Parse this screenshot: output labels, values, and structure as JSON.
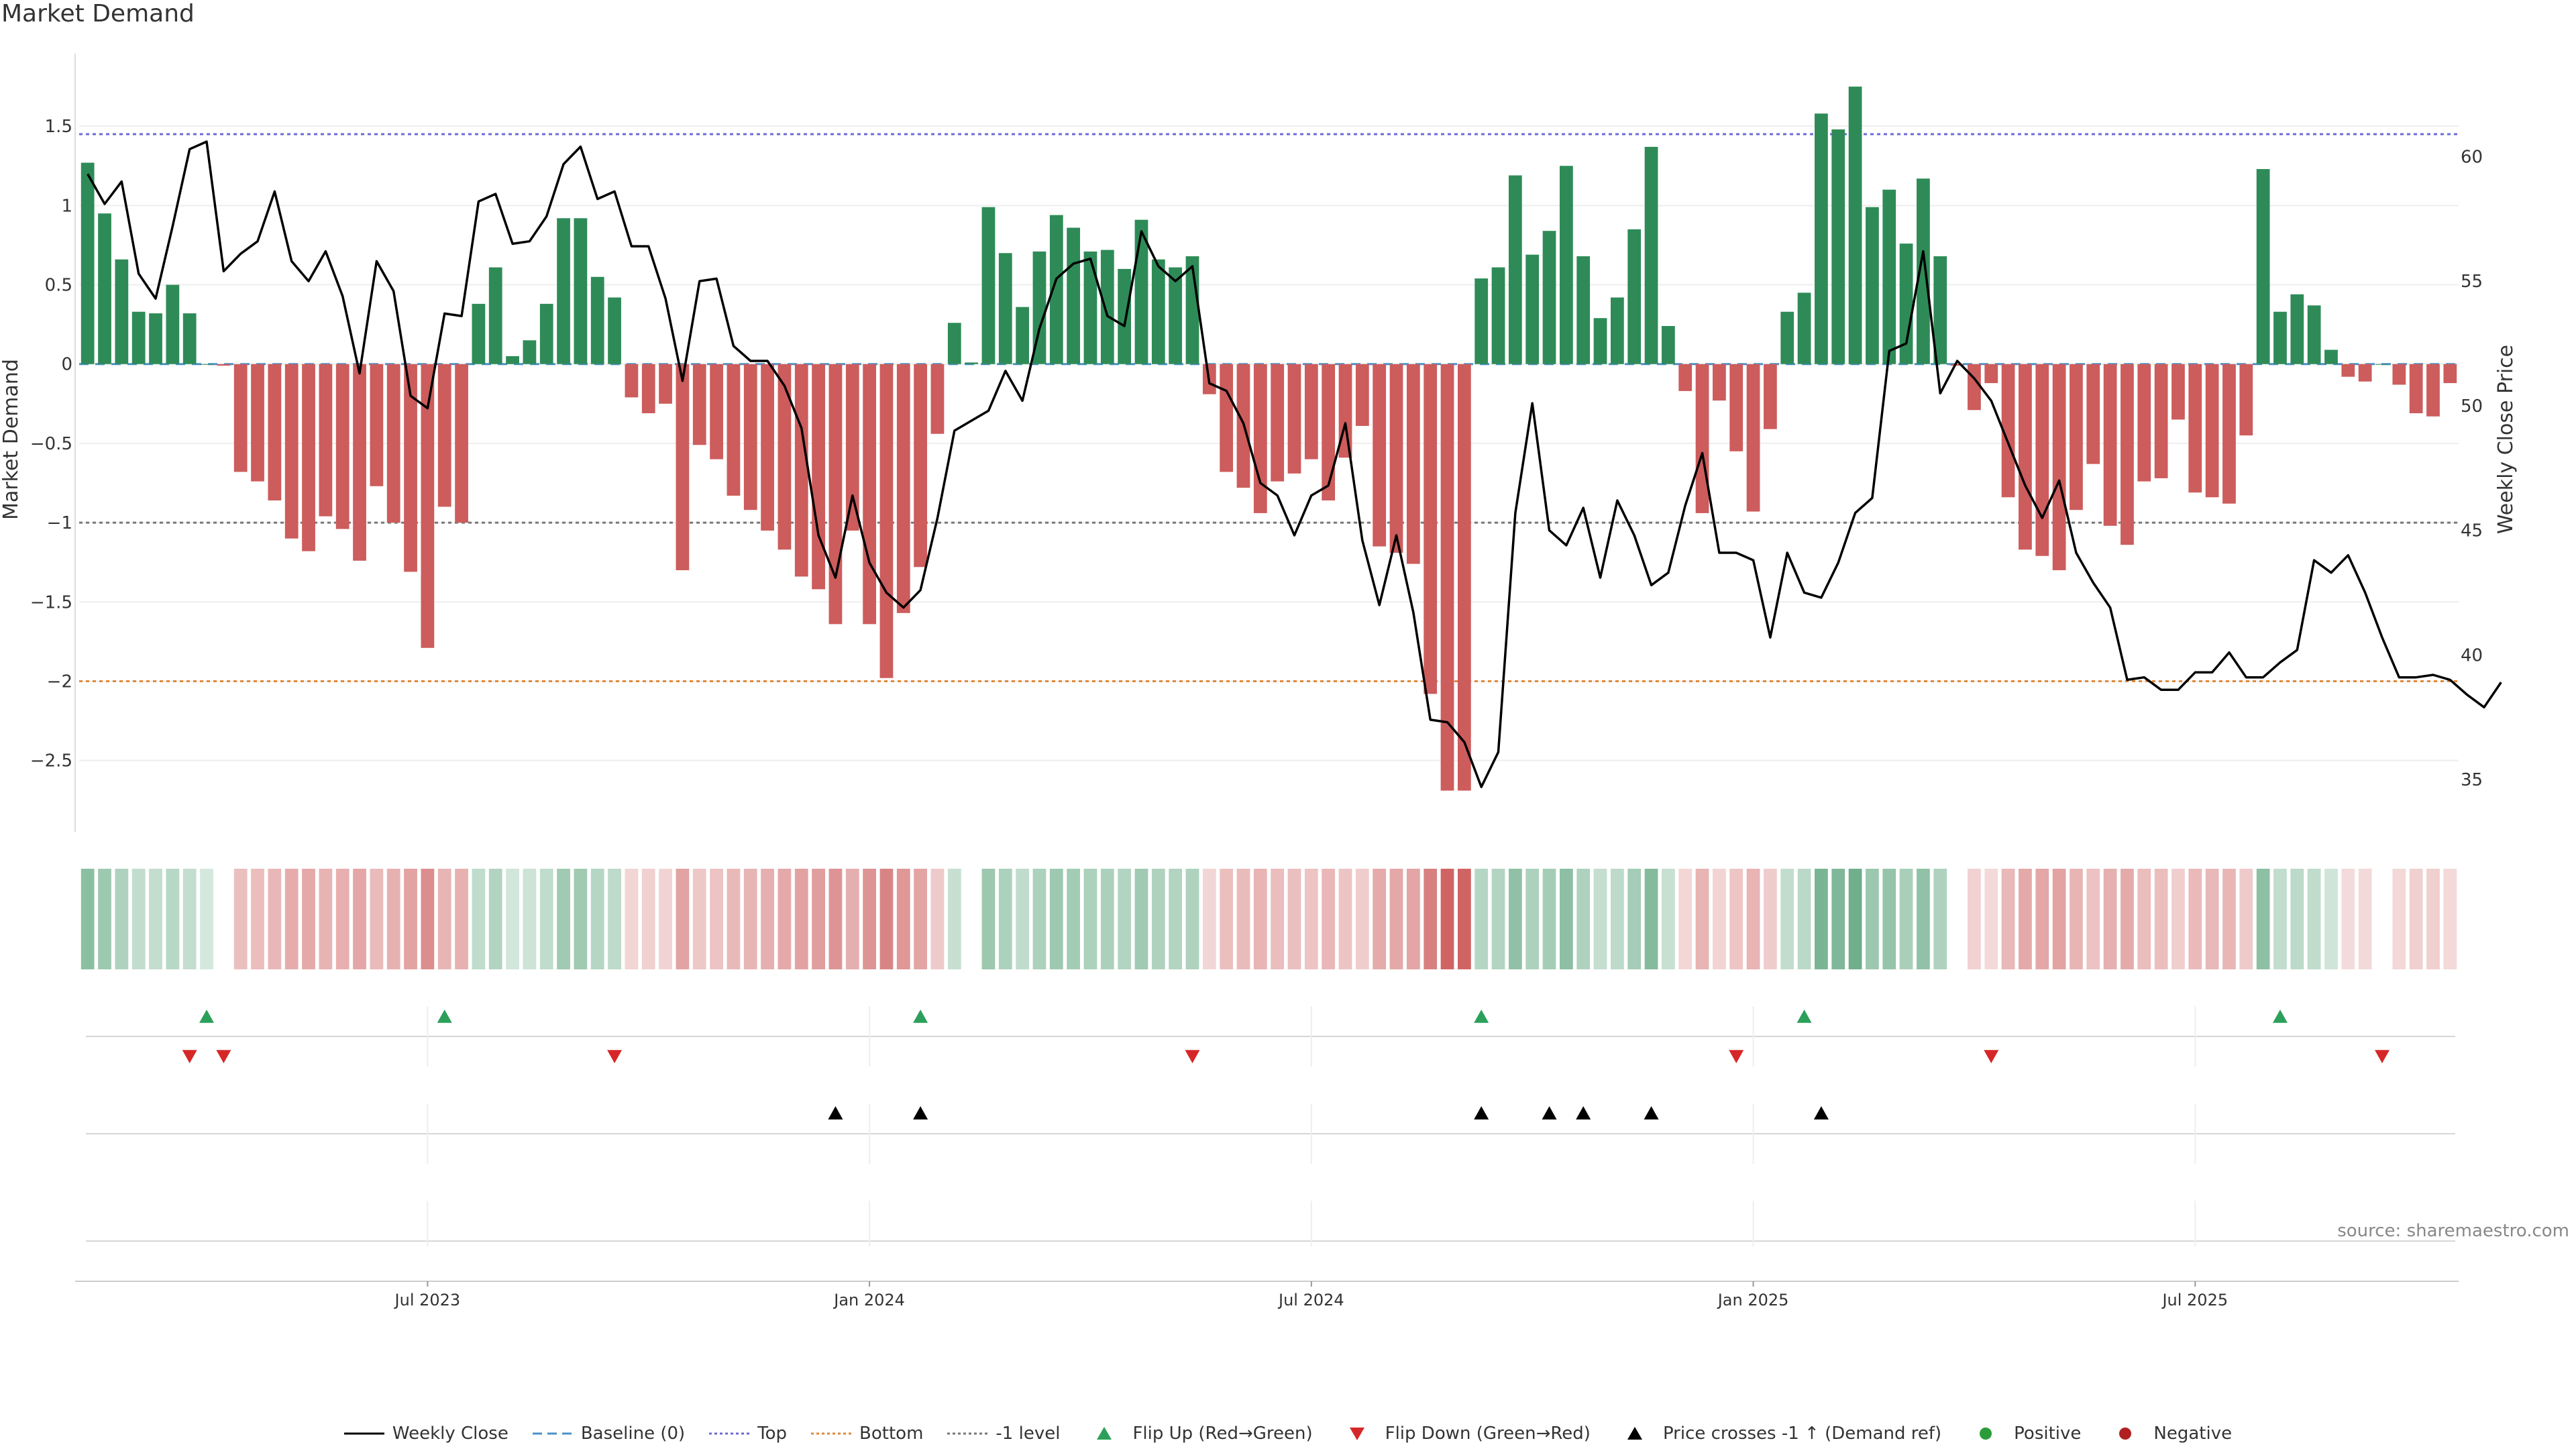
{
  "title": "Market Demand",
  "source": "source: sharemaestro.com",
  "colors": {
    "green": "#2e8b57",
    "red": "#cd5c5c",
    "price": "#000000",
    "top": "#6b6bd6",
    "bottom": "#e08a3a",
    "minus1": "#777777",
    "baseline": "#4a90c8",
    "up_marker": "#2ca05a",
    "down_marker": "#d62728",
    "cross_marker": "#000000",
    "positive": "#2a9d3a",
    "negative": "#b02020"
  },
  "legend": [
    {
      "id": "weekly-close",
      "label": "Weekly Close",
      "kind": "line-solid",
      "color": "#000000"
    },
    {
      "id": "baseline",
      "label": "Baseline (0)",
      "kind": "line-dash",
      "color": "#4a90c8"
    },
    {
      "id": "top",
      "label": "Top",
      "kind": "line-dot",
      "color": "#6b6bd6"
    },
    {
      "id": "bottom",
      "label": "Bottom",
      "kind": "line-dot",
      "color": "#e08a3a"
    },
    {
      "id": "minus1",
      "label": "-1 level",
      "kind": "line-dot",
      "color": "#777777"
    },
    {
      "id": "flip-up",
      "label": "Flip Up (Red→Green)",
      "kind": "tri-up",
      "color": "#2ca05a"
    },
    {
      "id": "flip-down",
      "label": "Flip Down (Green→Red)",
      "kind": "tri-down",
      "color": "#d62728"
    },
    {
      "id": "price-cross",
      "label": "Price crosses -1 ↑ (Demand ref)",
      "kind": "tri-up",
      "color": "#000000"
    },
    {
      "id": "positive",
      "label": "Positive",
      "kind": "dot",
      "color": "#2a9d3a"
    },
    {
      "id": "negative",
      "label": "Negative",
      "kind": "dot",
      "color": "#b02020"
    }
  ],
  "chart_data": {
    "type": "bar",
    "title": "Market Demand",
    "ylabel": "Market Demand",
    "y2label": "Weekly Close Price",
    "ylim": [
      -2.95,
      2.0
    ],
    "y2lim": [
      32.9,
      64.4
    ],
    "yticks": [
      {
        "v": 1.5,
        "label": "1.5"
      },
      {
        "v": 1,
        "label": "1"
      },
      {
        "v": 0.5,
        "label": "0.5"
      },
      {
        "v": 0,
        "label": "0"
      },
      {
        "v": -0.5,
        "label": "−0.5"
      },
      {
        "v": -1,
        "label": "−1"
      },
      {
        "v": -1.5,
        "label": "−1.5"
      },
      {
        "v": -2,
        "label": "−2"
      },
      {
        "v": -2.5,
        "label": "−2.5"
      }
    ],
    "y2ticks": [
      {
        "v": 60,
        "label": "60"
      },
      {
        "v": 55,
        "label": "55"
      },
      {
        "v": 50,
        "label": "50"
      },
      {
        "v": 45,
        "label": "45"
      },
      {
        "v": 40,
        "label": "40"
      },
      {
        "v": 35,
        "label": "35"
      }
    ],
    "xticks": [
      {
        "week": 20,
        "label": "Jul 2023"
      },
      {
        "week": 46,
        "label": "Jan 2024"
      },
      {
        "week": 72,
        "label": "Jul 2024"
      },
      {
        "week": 98,
        "label": "Jan 2025"
      },
      {
        "week": 124,
        "label": "Jul 2025"
      }
    ],
    "levels": {
      "top": 1.45,
      "bottom": -2.0,
      "minus1": -1.0,
      "baseline": 0
    },
    "demand": [
      1.27,
      0.95,
      0.66,
      0.33,
      0.32,
      0.5,
      0.32,
      0,
      -0.01,
      -0.68,
      -0.74,
      -0.86,
      -1.1,
      -1.18,
      -0.96,
      -1.04,
      -1.24,
      -0.77,
      -1.0,
      -1.31,
      -1.79,
      -0.9,
      -1.0,
      0.38,
      0.61,
      0.05,
      0.15,
      0.38,
      0.92,
      0.92,
      0.55,
      0.42,
      -0.21,
      -0.31,
      -0.25,
      -1.3,
      -0.51,
      -0.6,
      -0.83,
      -0.92,
      -1.05,
      -1.17,
      -1.34,
      -1.42,
      -1.64,
      -1.05,
      -1.64,
      -1.98,
      -1.57,
      -1.28,
      -0.44,
      0.26,
      0.01,
      0.99,
      0.7,
      0.36,
      0.71,
      0.94,
      0.86,
      0.71,
      0.72,
      0.6,
      0.91,
      0.66,
      0.61,
      0.68,
      -0.19,
      -0.68,
      -0.78,
      -0.94,
      -0.74,
      -0.69,
      -0.6,
      -0.86,
      -0.59,
      -0.39,
      -1.15,
      -1.19,
      -1.26,
      -2.08,
      -2.69,
      -2.69,
      0.54,
      0.61,
      1.19,
      0.69,
      0.84,
      1.25,
      0.68,
      0.29,
      0.42,
      0.85,
      1.37,
      0.24,
      -0.17,
      -0.94,
      -0.23,
      -0.55,
      -0.93,
      -0.41,
      0.33,
      0.45,
      1.58,
      1.48,
      1.75,
      0.99,
      1.1,
      0.76,
      1.17,
      0.68,
      -0.01,
      -0.29,
      -0.12,
      -0.84,
      -1.17,
      -1.21,
      -1.3,
      -0.92,
      -0.63,
      -1.02,
      -1.14,
      -0.74,
      -0.72,
      -0.35,
      -0.81,
      -0.84,
      -0.88,
      -0.45,
      1.23,
      0.33,
      0.44,
      0.37,
      0.09,
      -0.08,
      -0.11,
      0,
      -0.13,
      -0.31,
      -0.33,
      -0.12
    ],
    "price": [
      59.3,
      58.1,
      59.0,
      55.3,
      54.3,
      57.2,
      60.3,
      60.6,
      55.4,
      56.1,
      56.6,
      58.6,
      55.8,
      55.0,
      56.2,
      54.4,
      51.3,
      55.8,
      54.6,
      50.4,
      49.9,
      53.7,
      53.6,
      58.2,
      58.5,
      56.5,
      56.6,
      57.6,
      59.7,
      60.4,
      58.3,
      58.6,
      56.4,
      56.4,
      54.3,
      51.0,
      55.0,
      55.1,
      52.4,
      51.8,
      51.8,
      50.8,
      49.1,
      44.8,
      43.1,
      46.4,
      43.7,
      42.5,
      41.9,
      42.6,
      45.5,
      49.0,
      49.4,
      49.8,
      51.4,
      50.2,
      53.1,
      55.1,
      55.7,
      55.9,
      53.6,
      53.2,
      57.0,
      55.6,
      55.0,
      55.6,
      50.9,
      50.6,
      49.3,
      46.9,
      46.4,
      44.8,
      46.4,
      46.8,
      49.3,
      44.6,
      42.0,
      44.8,
      41.7,
      37.4,
      37.3,
      36.5,
      34.7,
      36.1,
      45.7,
      50.1,
      45.0,
      44.4,
      45.9,
      43.1,
      46.2,
      44.8,
      42.8,
      43.3,
      46.0,
      48.1,
      44.1,
      44.1,
      43.8,
      40.7,
      44.1,
      42.5,
      42.3,
      43.7,
      45.7,
      46.3,
      52.2,
      52.5,
      56.2,
      50.5,
      51.8,
      51.1,
      50.2,
      48.5,
      46.8,
      45.5,
      47.0,
      44.1,
      42.9,
      41.9,
      39.0,
      39.1,
      38.6,
      38.6,
      39.3,
      39.3,
      40.1,
      39.1,
      39.1,
      39.7,
      40.2,
      43.8,
      43.3,
      44.0,
      42.5,
      40.7,
      39.1,
      39.1,
      39.2,
      39.0,
      38.4,
      37.9,
      38.9
    ],
    "flip_up_weeks": [
      7,
      21,
      49,
      82,
      101,
      129
    ],
    "flip_down_weeks": [
      6,
      8,
      31,
      65,
      97,
      112,
      135
    ],
    "price_cross_weeks": [
      44,
      49,
      82,
      86,
      88,
      92,
      102
    ]
  }
}
